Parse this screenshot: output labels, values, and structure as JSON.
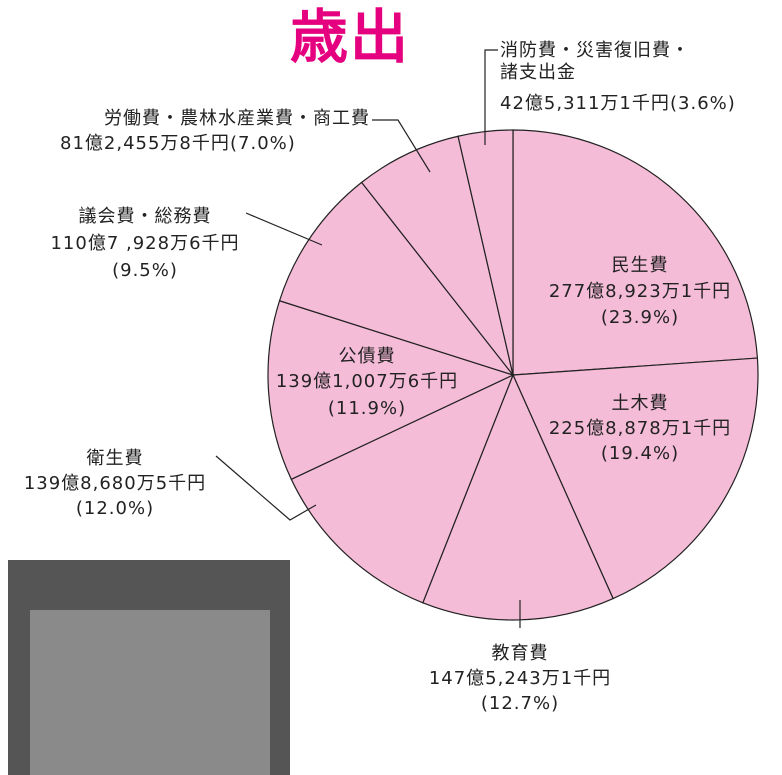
{
  "chart_data": {
    "type": "pie",
    "title": "歳出",
    "categories": [
      "民生費",
      "土木費",
      "教育費",
      "衛生費",
      "公債費",
      "議会費・総務費",
      "労働費・農林水産業費・商工費",
      "消防費・災害復旧費・諸支出金"
    ],
    "amounts": [
      "277億8,923万1千円",
      "225億8,878万1千円",
      "147億5,243万1千円",
      "139億8,680万5千円",
      "139億1,007万6千円",
      "110億7 ,928万6千円",
      "81億2,455万8千円",
      "42億5,311万1千円"
    ],
    "values": [
      23.9,
      19.4,
      12.7,
      12.0,
      11.9,
      9.5,
      7.0,
      3.6
    ],
    "value_labels": [
      "(23.9%)",
      "(19.4%)",
      "(12.7%)",
      "(12.0%)",
      "(11.9%)",
      "(9.5%)",
      "(7.0%)",
      "(3.6%)"
    ],
    "color": "#f5bcd8"
  }
}
